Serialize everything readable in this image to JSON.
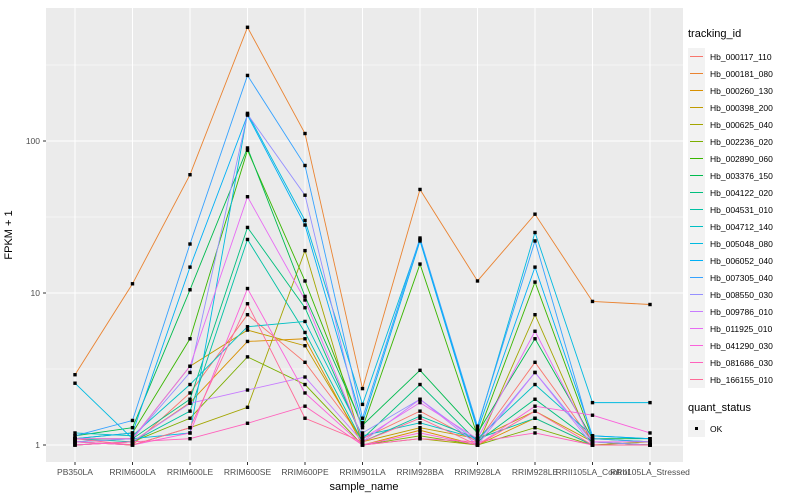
{
  "figure": {
    "background": "#FFFFFF",
    "panel_bg": "#EBEBEB",
    "grid_color": "#FFFFFF",
    "axis_text_color": "#4D4D4D",
    "tick_color": "#333333",
    "point_color": "#000000",
    "legend_key_bg": "#F2F2F2"
  },
  "chart_data": {
    "type": "line",
    "title": "",
    "xlabel": "sample_name",
    "ylabel": "FPKM + 1",
    "y_scale": "log10",
    "y_ticks": [
      1,
      10,
      100
    ],
    "y_tick_labels": [
      "1",
      "10",
      "100"
    ],
    "y_minor_ticks": [
      3.162,
      31.62,
      316.2
    ],
    "ylim": [
      0.77,
      750
    ],
    "grid": "on",
    "legend_position": "right",
    "legend_title": "tracking_id",
    "categories": [
      "PB350LA",
      "RRIM600LA",
      "RRIM600LE",
      "RRIM600SE",
      "RRIM600PE",
      "RRIM901LA",
      "RRIM928BA",
      "RRIM928LA",
      "RRIM928LE",
      "RRII105LA_Control",
      "RRII105LA_Stressed"
    ],
    "series": [
      {
        "name": "Hb_000117_110",
        "color": "#F8766D",
        "values": [
          1.05,
          1.0,
          2.2,
          7.2,
          3.5,
          1.1,
          1.67,
          1.05,
          3.5,
          1.05,
          1.0
        ]
      },
      {
        "name": "Hb_000181_080",
        "color": "#EA8331",
        "values": [
          2.9,
          11.5,
          60,
          560,
          112,
          2.35,
          48,
          12,
          33,
          8.8,
          8.4
        ]
      },
      {
        "name": "Hb_000260_130",
        "color": "#D89000",
        "values": [
          1.0,
          1.05,
          1.9,
          4.8,
          5.0,
          1.0,
          1.25,
          1.0,
          1.5,
          1.0,
          1.0
        ]
      },
      {
        "name": "Hb_000398_200",
        "color": "#C09B00",
        "values": [
          1.1,
          1.1,
          3.3,
          5.7,
          4.5,
          1.05,
          1.3,
          1.1,
          1.67,
          1.05,
          1.0
        ]
      },
      {
        "name": "Hb_000625_040",
        "color": "#A3A500",
        "values": [
          1.05,
          1.0,
          1.3,
          1.77,
          19,
          1.0,
          1.1,
          1.0,
          7.2,
          1.0,
          1.05
        ]
      },
      {
        "name": "Hb_002236_020",
        "color": "#7CAE00",
        "values": [
          1.0,
          1.05,
          1.5,
          3.8,
          2.5,
          1.0,
          1.15,
          1.0,
          1.3,
          1.0,
          1.0
        ]
      },
      {
        "name": "Hb_002890_060",
        "color": "#39B600",
        "values": [
          1.1,
          1.2,
          5.0,
          87,
          12,
          1.3,
          15.5,
          1.15,
          11.8,
          1.1,
          1.05
        ]
      },
      {
        "name": "Hb_003376_150",
        "color": "#00BB4E",
        "values": [
          1.15,
          1.3,
          10.5,
          90,
          9.5,
          1.35,
          3.1,
          1.2,
          5.0,
          1.1,
          1.1
        ]
      },
      {
        "name": "Hb_004122_020",
        "color": "#00BF7D",
        "values": [
          1.05,
          1.1,
          2.0,
          27,
          8.0,
          1.1,
          2.5,
          1.05,
          2.0,
          1.05,
          1.0
        ]
      },
      {
        "name": "Hb_004531_010",
        "color": "#00C1A3",
        "values": [
          1.1,
          1.05,
          1.67,
          22.5,
          5.5,
          1.05,
          1.55,
          1.1,
          1.5,
          1.0,
          1.0
        ]
      },
      {
        "name": "Hb_004712_140",
        "color": "#00BFC4",
        "values": [
          1.2,
          1.15,
          2.5,
          6.0,
          6.5,
          1.15,
          1.4,
          1.1,
          2.5,
          1.15,
          1.1
        ]
      },
      {
        "name": "Hb_005048_080",
        "color": "#00BAE0",
        "values": [
          2.55,
          1.1,
          1.2,
          152,
          30,
          1.85,
          22.5,
          1.3,
          25,
          1.9,
          1.9
        ]
      },
      {
        "name": "Hb_006052_040",
        "color": "#00B0F6",
        "values": [
          1.1,
          1.2,
          14.8,
          148,
          28,
          1.4,
          22,
          1.25,
          14.8,
          1.15,
          1.1
        ]
      },
      {
        "name": "Hb_007305_040",
        "color": "#35A2FF",
        "values": [
          1.15,
          1.45,
          21,
          270,
          69,
          1.5,
          23,
          1.33,
          22,
          1.1,
          1.05
        ]
      },
      {
        "name": "Hb_008550_030",
        "color": "#9590FF",
        "values": [
          1.05,
          1.1,
          3.0,
          150,
          44,
          1.2,
          2.0,
          1.05,
          3.0,
          1.05,
          1.0
        ]
      },
      {
        "name": "Hb_009786_010",
        "color": "#C77CFF",
        "values": [
          1.0,
          1.05,
          1.88,
          2.3,
          2.8,
          1.05,
          2.0,
          1.0,
          3.0,
          1.0,
          1.0
        ]
      },
      {
        "name": "Hb_011925_010",
        "color": "#E76BF3",
        "values": [
          1.1,
          1.1,
          3.3,
          43,
          9.0,
          1.1,
          1.9,
          1.1,
          5.6,
          1.05,
          1.05
        ]
      },
      {
        "name": "Hb_041290_030",
        "color": "#FA62DB",
        "values": [
          1.05,
          1.0,
          1.2,
          10.7,
          2.2,
          1.0,
          1.2,
          1.0,
          1.8,
          1.57,
          1.2
        ]
      },
      {
        "name": "Hb_081686_030",
        "color": "#FF62BC",
        "values": [
          1.0,
          1.05,
          1.1,
          1.39,
          1.8,
          1.0,
          1.1,
          1.05,
          1.2,
          1.0,
          1.0
        ]
      },
      {
        "name": "Hb_166155_010",
        "color": "#FF6A98",
        "values": [
          1.1,
          1.0,
          1.3,
          8.5,
          1.5,
          1.05,
          1.5,
          1.0,
          1.67,
          1.0,
          1.0
        ]
      }
    ],
    "quant_legend": {
      "title": "quant_status",
      "items": [
        {
          "label": "OK",
          "marker": "black-square"
        }
      ]
    }
  }
}
